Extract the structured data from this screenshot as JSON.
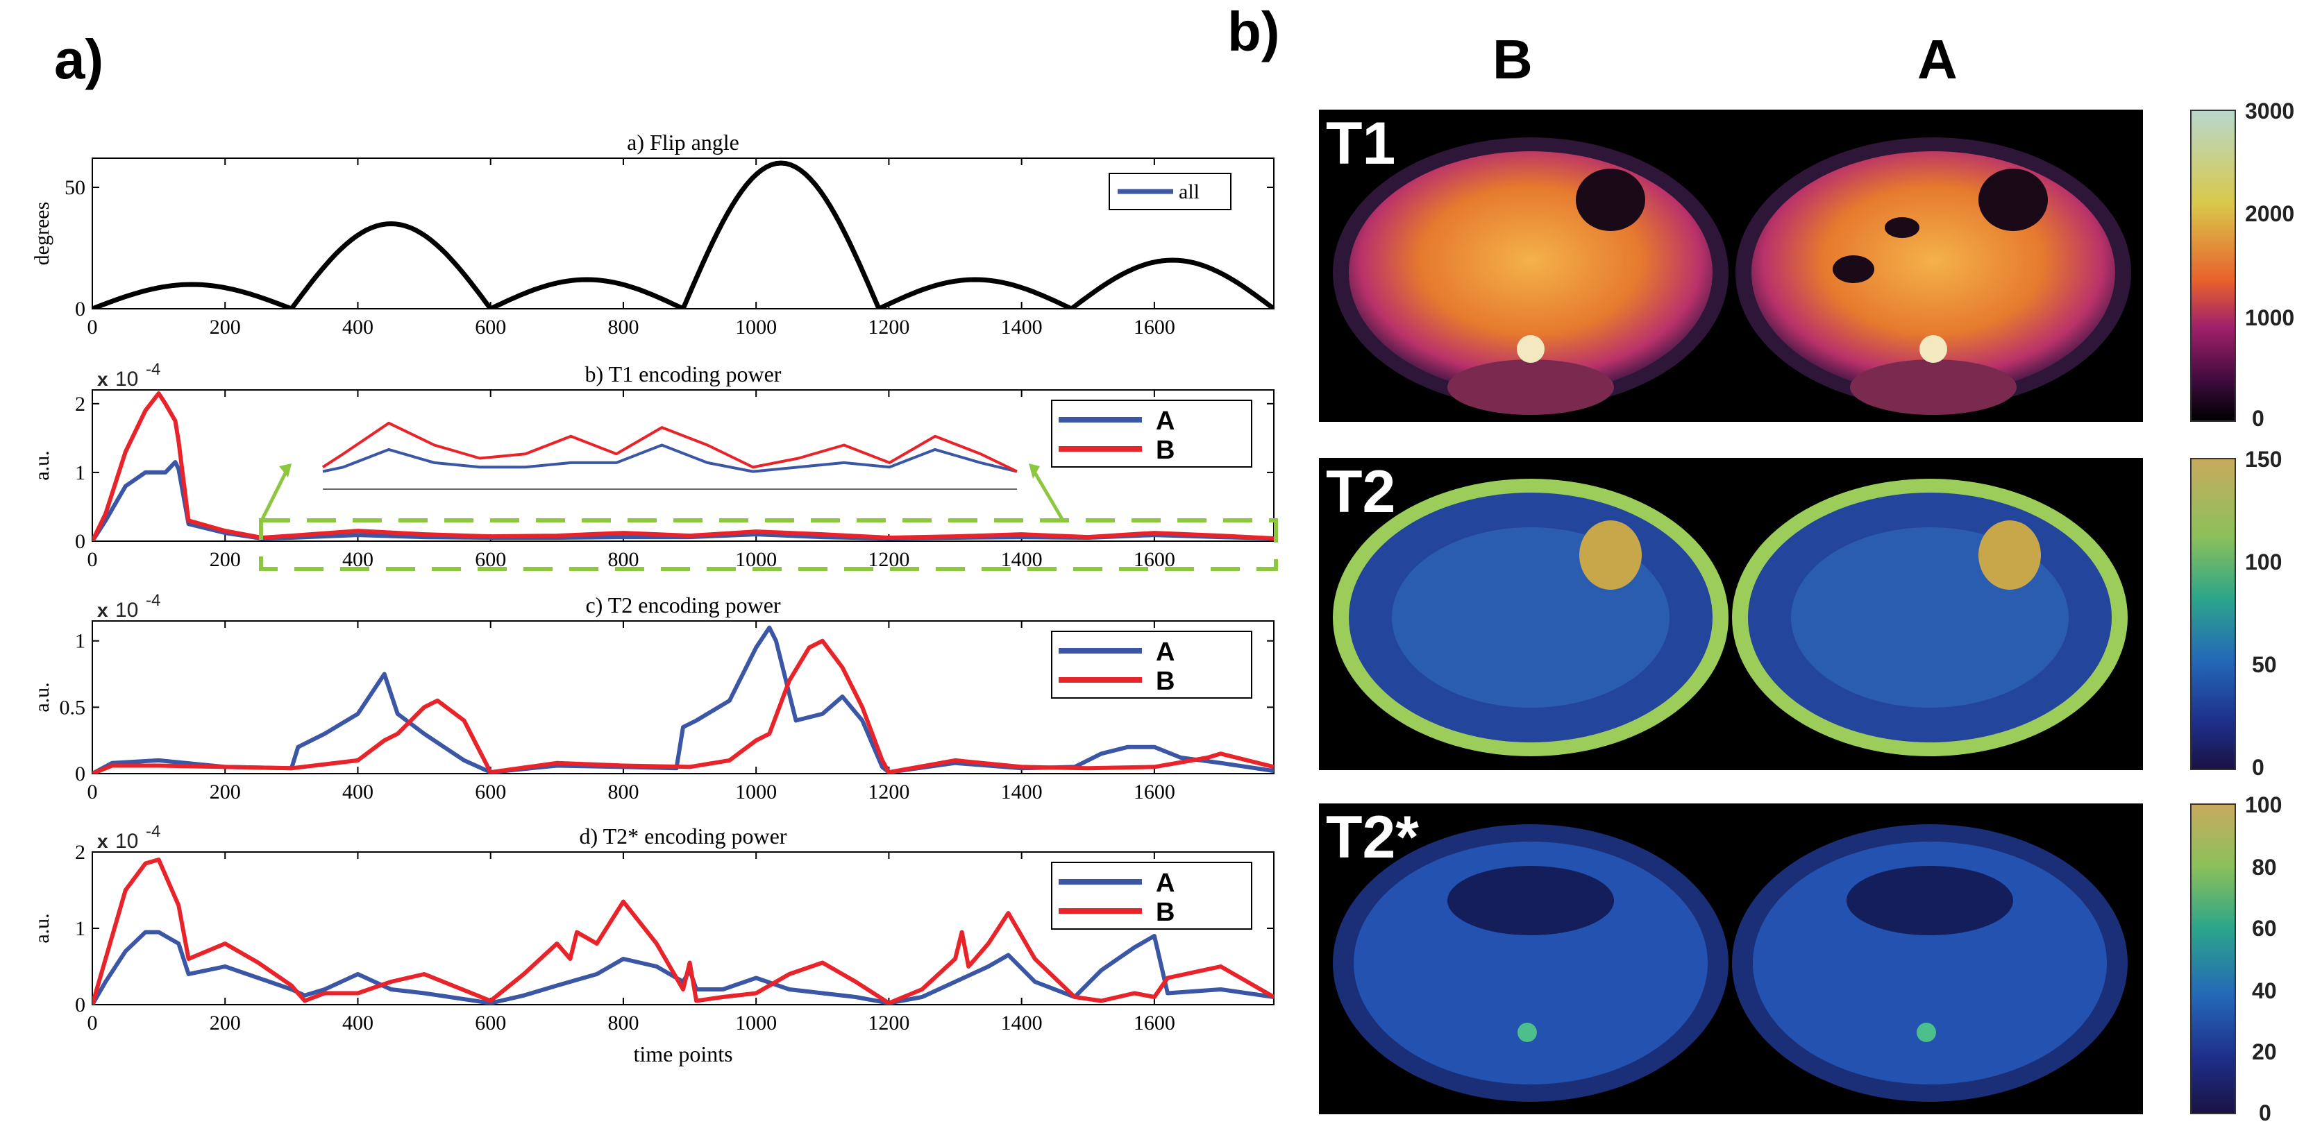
{
  "panel_a_label": "a)",
  "panel_b_label": "b)",
  "columns": [
    "B",
    "A"
  ],
  "maps": [
    {
      "label": "T1",
      "scheme": "t1",
      "colorbar_ticks": [
        "3000",
        "2000",
        "1000",
        "0"
      ]
    },
    {
      "label": "T2",
      "scheme": "t2",
      "colorbar_ticks": [
        "150",
        "100",
        "50",
        "0"
      ]
    },
    {
      "label": "T2*",
      "scheme": "t2s",
      "colorbar_ticks": [
        "100",
        "80",
        "60",
        "40",
        "20",
        "0"
      ]
    }
  ],
  "colors": {
    "series_A": "#3a56a5",
    "series_B": "#e8232a",
    "flip": "#000000",
    "inset_frame": "#8dc63f"
  },
  "chart_data": [
    {
      "type": "line",
      "title": "a) Flip angle",
      "xlabel": "",
      "ylabel": "degrees",
      "xlim": [
        0,
        1780
      ],
      "ylim": [
        0,
        62
      ],
      "xticks": [
        0,
        200,
        400,
        600,
        800,
        1000,
        1200,
        1400,
        1600
      ],
      "yticks": [
        0,
        50
      ],
      "ytick_labels": [
        "0",
        "50"
      ],
      "exponent": "",
      "legend": [
        {
          "name": "all",
          "color": "#3a56a5"
        }
      ],
      "series": [
        {
          "name": "all",
          "color": "#000000",
          "arcs": [
            [
              0,
              300,
              10
            ],
            [
              300,
              600,
              35
            ],
            [
              600,
              890,
              12
            ],
            [
              890,
              1185,
              60
            ],
            [
              1185,
              1475,
              12
            ],
            [
              1475,
              1780,
              20
            ]
          ]
        }
      ]
    },
    {
      "type": "line",
      "title": "b) T1 encoding power",
      "xlabel": "",
      "ylabel": "a.u.",
      "xlim": [
        0,
        1780
      ],
      "ylim": [
        0,
        2.2
      ],
      "xticks": [
        0,
        200,
        400,
        600,
        800,
        1000,
        1200,
        1400,
        1600
      ],
      "yticks": [
        0,
        1,
        2
      ],
      "ytick_labels": [
        "0",
        "1",
        "2"
      ],
      "exponent": "x 10 -4",
      "legend": [
        {
          "name": "A",
          "color": "#3a56a5"
        },
        {
          "name": "B",
          "color": "#e8232a"
        }
      ],
      "series": [
        {
          "name": "A",
          "color": "#3a56a5",
          "x": [
            0,
            20,
            50,
            80,
            100,
            110,
            125,
            130,
            145,
            200,
            255,
            300,
            400,
            500,
            600,
            700,
            800,
            900,
            1000,
            1100,
            1200,
            1300,
            1400,
            1500,
            1600,
            1700,
            1780
          ],
          "y": [
            0,
            0.3,
            0.8,
            1.0,
            1.0,
            1.0,
            1.15,
            1.05,
            0.25,
            0.12,
            0.04,
            0.05,
            0.09,
            0.06,
            0.05,
            0.05,
            0.06,
            0.06,
            0.1,
            0.06,
            0.04,
            0.05,
            0.06,
            0.05,
            0.09,
            0.06,
            0.04
          ]
        },
        {
          "name": "B",
          "color": "#e8232a",
          "x": [
            0,
            20,
            50,
            80,
            100,
            110,
            125,
            130,
            145,
            200,
            255,
            300,
            400,
            500,
            600,
            700,
            800,
            900,
            1000,
            1100,
            1200,
            1300,
            1400,
            1500,
            1600,
            1700,
            1780
          ],
          "y": [
            0,
            0.4,
            1.3,
            1.9,
            2.15,
            2.0,
            1.75,
            1.45,
            0.3,
            0.15,
            0.05,
            0.08,
            0.15,
            0.1,
            0.07,
            0.08,
            0.12,
            0.08,
            0.14,
            0.1,
            0.05,
            0.07,
            0.1,
            0.06,
            0.12,
            0.08,
            0.04
          ]
        }
      ]
    },
    {
      "type": "line",
      "title": "c) T2 encoding power",
      "xlabel": "",
      "ylabel": "a.u.",
      "xlim": [
        0,
        1780
      ],
      "ylim": [
        0,
        1.15
      ],
      "xticks": [
        0,
        200,
        400,
        600,
        800,
        1000,
        1200,
        1400,
        1600
      ],
      "yticks": [
        0,
        0.5,
        1
      ],
      "ytick_labels": [
        "0",
        "0.5",
        "1"
      ],
      "exponent": "x 10 -4",
      "legend": [
        {
          "name": "A",
          "color": "#3a56a5"
        },
        {
          "name": "B",
          "color": "#e8232a"
        }
      ],
      "series": [
        {
          "name": "A",
          "color": "#3a56a5",
          "x": [
            0,
            30,
            100,
            200,
            300,
            310,
            350,
            400,
            440,
            460,
            500,
            560,
            600,
            700,
            800,
            880,
            890,
            910,
            960,
            1000,
            1020,
            1030,
            1060,
            1100,
            1130,
            1160,
            1190,
            1200,
            1300,
            1400,
            1480,
            1520,
            1560,
            1600,
            1640,
            1700,
            1780
          ],
          "y": [
            0,
            0.08,
            0.1,
            0.05,
            0.04,
            0.2,
            0.3,
            0.45,
            0.75,
            0.45,
            0.3,
            0.1,
            0.01,
            0.06,
            0.05,
            0.04,
            0.35,
            0.4,
            0.55,
            0.95,
            1.1,
            1.0,
            0.4,
            0.45,
            0.58,
            0.4,
            0.05,
            0.01,
            0.08,
            0.04,
            0.05,
            0.15,
            0.2,
            0.2,
            0.12,
            0.08,
            0.02
          ]
        },
        {
          "name": "B",
          "color": "#e8232a",
          "x": [
            0,
            30,
            100,
            200,
            300,
            400,
            440,
            460,
            500,
            520,
            560,
            600,
            700,
            800,
            900,
            960,
            1000,
            1020,
            1050,
            1080,
            1100,
            1130,
            1160,
            1190,
            1200,
            1300,
            1400,
            1500,
            1600,
            1680,
            1700,
            1780
          ],
          "y": [
            0,
            0.06,
            0.06,
            0.05,
            0.04,
            0.1,
            0.25,
            0.3,
            0.5,
            0.55,
            0.4,
            0.01,
            0.08,
            0.06,
            0.05,
            0.1,
            0.25,
            0.3,
            0.7,
            0.95,
            1.0,
            0.8,
            0.5,
            0.1,
            0.01,
            0.1,
            0.05,
            0.04,
            0.05,
            0.12,
            0.15,
            0.05
          ]
        }
      ]
    },
    {
      "type": "line",
      "title": "d) T2* encoding power",
      "xlabel": "time points",
      "ylabel": "a.u.",
      "xlim": [
        0,
        1780
      ],
      "ylim": [
        0,
        2
      ],
      "xticks": [
        0,
        200,
        400,
        600,
        800,
        1000,
        1200,
        1400,
        1600
      ],
      "yticks": [
        0,
        1,
        2
      ],
      "ytick_labels": [
        "0",
        "1",
        "2"
      ],
      "exponent": "x 10 -4",
      "legend": [
        {
          "name": "A",
          "color": "#3a56a5"
        },
        {
          "name": "B",
          "color": "#e8232a"
        }
      ],
      "series": [
        {
          "name": "A",
          "color": "#3a56a5",
          "x": [
            0,
            20,
            50,
            80,
            100,
            130,
            145,
            200,
            250,
            300,
            320,
            350,
            400,
            450,
            500,
            600,
            650,
            700,
            760,
            800,
            850,
            890,
            900,
            910,
            950,
            1000,
            1050,
            1100,
            1150,
            1200,
            1250,
            1300,
            1350,
            1380,
            1420,
            1480,
            1520,
            1570,
            1600,
            1620,
            1700,
            1780
          ],
          "y": [
            0,
            0.3,
            0.7,
            0.95,
            0.95,
            0.8,
            0.4,
            0.5,
            0.35,
            0.2,
            0.12,
            0.2,
            0.4,
            0.2,
            0.15,
            0.02,
            0.12,
            0.25,
            0.4,
            0.6,
            0.5,
            0.3,
            0.45,
            0.2,
            0.2,
            0.35,
            0.2,
            0.15,
            0.1,
            0.02,
            0.1,
            0.3,
            0.5,
            0.65,
            0.3,
            0.1,
            0.45,
            0.75,
            0.9,
            0.15,
            0.2,
            0.1
          ]
        },
        {
          "name": "B",
          "color": "#e8232a",
          "x": [
            0,
            20,
            50,
            80,
            100,
            130,
            145,
            200,
            250,
            300,
            320,
            350,
            400,
            450,
            500,
            600,
            650,
            700,
            720,
            730,
            760,
            800,
            850,
            890,
            900,
            910,
            950,
            1000,
            1050,
            1100,
            1150,
            1200,
            1250,
            1300,
            1310,
            1320,
            1350,
            1380,
            1420,
            1480,
            1520,
            1570,
            1600,
            1620,
            1700,
            1780
          ],
          "y": [
            0,
            0.6,
            1.5,
            1.85,
            1.9,
            1.3,
            0.6,
            0.8,
            0.55,
            0.25,
            0.05,
            0.15,
            0.15,
            0.3,
            0.4,
            0.05,
            0.4,
            0.8,
            0.6,
            0.95,
            0.8,
            1.35,
            0.8,
            0.2,
            0.55,
            0.05,
            0.1,
            0.15,
            0.4,
            0.55,
            0.3,
            0.02,
            0.2,
            0.6,
            0.95,
            0.5,
            0.8,
            1.2,
            0.6,
            0.1,
            0.05,
            0.15,
            0.1,
            0.35,
            0.5,
            0.1
          ]
        }
      ]
    }
  ]
}
